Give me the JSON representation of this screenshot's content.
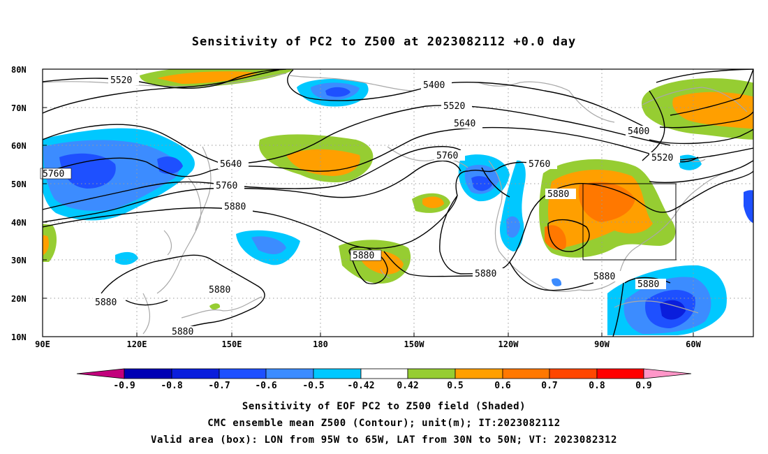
{
  "title": "Sensitivity of PC2 to Z500 at 2023082112 +0.0 day",
  "axes": {
    "lon_ticks": [
      "90E",
      "120E",
      "150E",
      "180",
      "150W",
      "120W",
      "90W",
      "60W"
    ],
    "lat_ticks": [
      "80N",
      "70N",
      "60N",
      "50N",
      "40N",
      "30N",
      "20N",
      "10N"
    ]
  },
  "colors": {
    "neg_09": "#c2007c",
    "neg_08": "#0000b4",
    "neg_07": "#0a1edc",
    "neg_06": "#1e50ff",
    "neg_05": "#3c8cff",
    "neg_042": "#00c8ff",
    "neutral": "#ffffff",
    "pos_042": "#96cd32",
    "pos_05": "#ff9f00",
    "pos_06": "#ff7800",
    "pos_07": "#ff4600",
    "pos_08": "#ff0000",
    "pos_09": "#ff96c8",
    "land_outline": "#a0a0a0",
    "contour": "#000000"
  },
  "colorbar": {
    "labels": [
      "-0.9",
      "-0.8",
      "-0.7",
      "-0.6",
      "-0.5",
      "-0.42",
      "0.42",
      "0.5",
      "0.6",
      "0.7",
      "0.8",
      "0.9"
    ]
  },
  "contour_labels": {
    "c5520_w": "5520",
    "c5400": "5400",
    "c5520_c": "5520",
    "c5640_c": "5640",
    "c5760_c": "5760",
    "c5760_e": "5760",
    "c5880_e": "5880",
    "c5760_w": "5760",
    "c5640_w": "5640",
    "c5760_w2": "5760",
    "c5880_w": "5880",
    "c5880_hi": "5880",
    "c5880_s": "5880",
    "c5400_e": "5400",
    "c5520_e": "5520",
    "c5880_gulf": "5880",
    "c5880_carib": "5880",
    "c5880_pac1": "5880",
    "c5880_pac2": "5880",
    "c5880_pac3": "5880"
  },
  "captions": {
    "line1": "Sensitivity of EOF PC2 to Z500 field (Shaded)",
    "line2": "CMC ensemble mean Z500 (Contour); unit(m); IT:2023082112",
    "line3": "Valid area (box): LON from 95W to 65W, LAT from 30N to 50N; VT: 2023082312"
  }
}
